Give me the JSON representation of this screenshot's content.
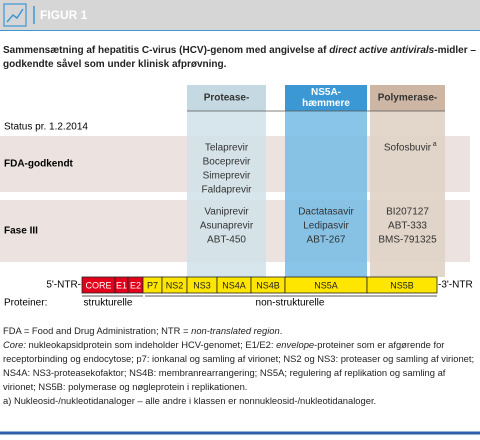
{
  "header": {
    "label": "FIGUR 1"
  },
  "title": [
    "Sammensætning af hepatitis C-virus (HCV)-genom med angivelse af ",
    "direct active antivirals",
    "-midler – godkendte såvel som under klinisk afprøvning."
  ],
  "columns": [
    {
      "label": [
        "Protease-"
      ],
      "color": "#c4d9e2",
      "body_color": "#d3e3ea",
      "text_color": "#333333"
    },
    {
      "label": [
        "NS5A-",
        "hæmmere"
      ],
      "color": "#3c98d4",
      "body_color": "#7cbfe6",
      "text_color": "#ffffff"
    },
    {
      "label": [
        "Polymerase-"
      ],
      "color": "#cdb6a3",
      "body_color": "#e0d3c7",
      "text_color": "#333333"
    }
  ],
  "status": "Status pr. 1.2.2014",
  "rows": [
    {
      "label": "FDA-godkendt",
      "cells": [
        [
          "Telaprevir",
          "Boceprevir",
          "Simeprevir",
          "Faldaprevir"
        ],
        [],
        [
          "Sofosbuvir"
        ]
      ],
      "note": "a"
    },
    {
      "label": "Fase III",
      "cells": [
        [
          "Vaniprevir",
          "Asunaprevir",
          "ABT-450"
        ],
        [
          "Dactatasavir",
          "Ledipasvir",
          "ABT-267"
        ],
        [
          "BI207127",
          "ABT-333",
          "BMS-791325"
        ]
      ]
    }
  ],
  "genome": {
    "left": "5'-NTR-",
    "right": "-3'-NTR",
    "segments": [
      {
        "name": "CORE",
        "color": "#e2001a"
      },
      {
        "name": "E1",
        "color": "#e2001a"
      },
      {
        "name": "E2",
        "color": "#e2001a"
      },
      {
        "name": "P7",
        "color": "#ffe600"
      },
      {
        "name": "NS2",
        "color": "#ffe600"
      },
      {
        "name": "NS3",
        "color": "#ffe600"
      },
      {
        "name": "NS4A",
        "color": "#ffe600"
      },
      {
        "name": "NS4B",
        "color": "#ffe600"
      },
      {
        "name": "NS5A",
        "color": "#ffe600"
      },
      {
        "name": "NS5B",
        "color": "#ffe600"
      }
    ]
  },
  "proteins": {
    "label": "Proteiner:",
    "structural": "strukturelle",
    "nonstructural": "non-strukturelle"
  },
  "footnotes": [
    [
      "FDA = Food and Drug Administration; NTR = ",
      "non-translated region",
      "."
    ],
    [
      "Core:",
      " nukleokapsidprotein som indeholder HCV-genomet; E1/E2: ",
      "envelope",
      "-proteiner som er afgørende for receptorbinding og endocytose; p7: ionkanal og samling af virionet; NS2 og NS3: proteaser og samling af virionet; NS4A: NS3-proteasekofaktor; NS4B: membranrearrangering; NS5A; regulering af replikation og samling af virionet; NS5B: polymerase og nøgleprotein i replikationen."
    ],
    [
      "a) Nukleosid-/nukleotidanaloger – alle andre i klassen er nonnukleosid-/nukleotidanaloger."
    ]
  ]
}
